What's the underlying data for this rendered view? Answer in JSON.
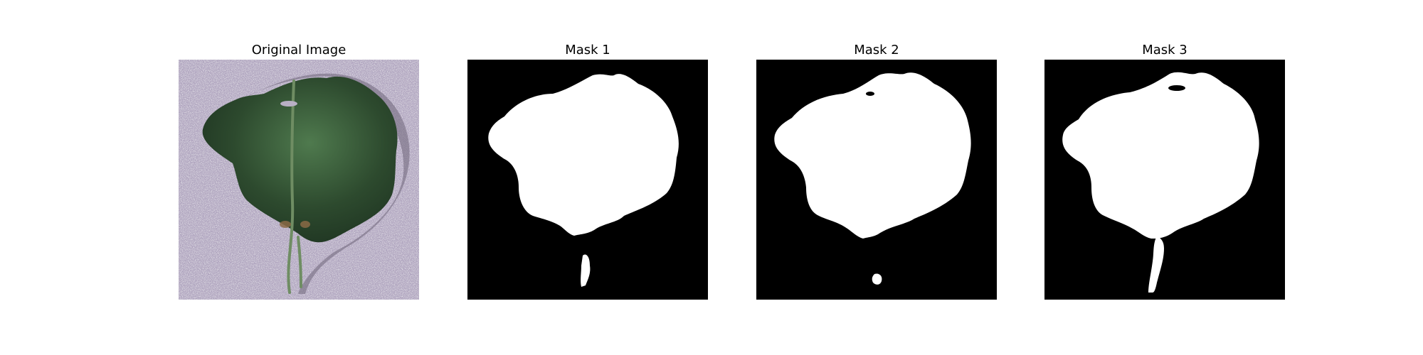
{
  "figure": {
    "panels": [
      {
        "title": "Original Image",
        "kind": "photo"
      },
      {
        "title": "Mask 1",
        "kind": "mask"
      },
      {
        "title": "Mask 2",
        "kind": "mask"
      },
      {
        "title": "Mask 3",
        "kind": "mask"
      }
    ],
    "colors": {
      "background": "#b1a6c0",
      "leaf": "#2d4a2e",
      "leaf_highlight": "#4f7a4e",
      "stem": "#6f8d63",
      "mask_foreground": "#ffffff",
      "mask_background": "#000000"
    }
  }
}
